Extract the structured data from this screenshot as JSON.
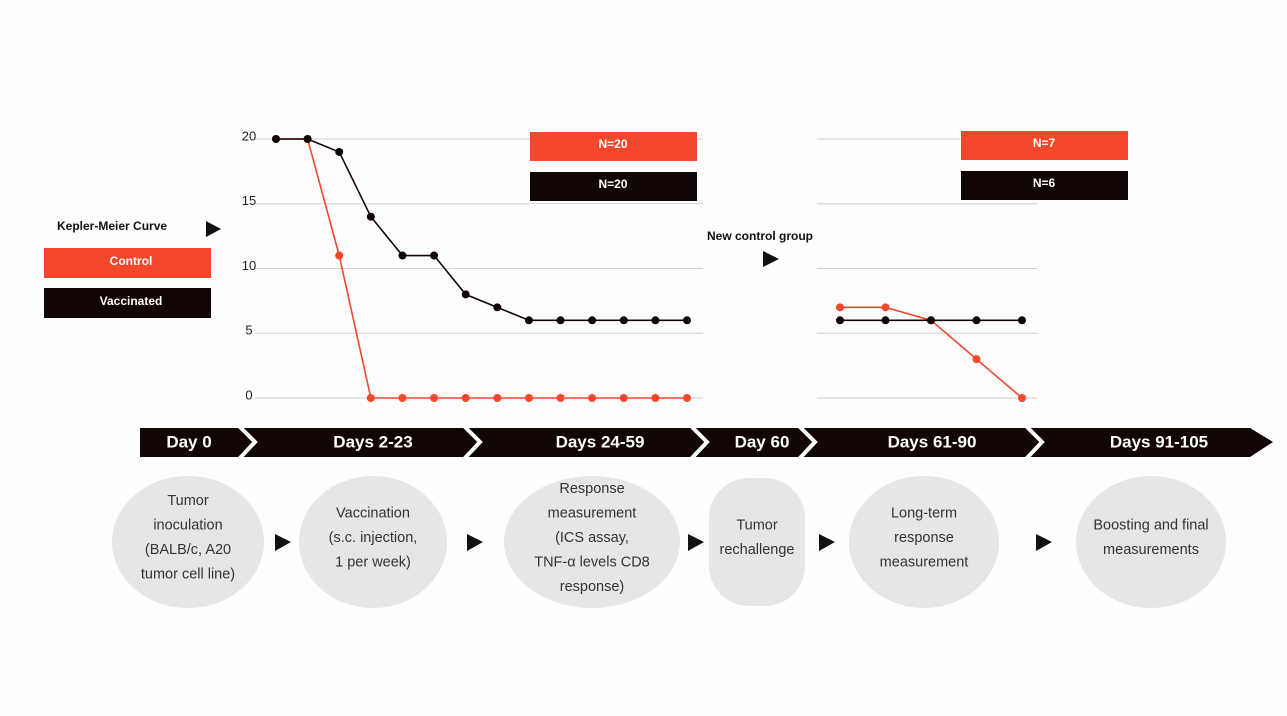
{
  "legend": {
    "title": "Kepler-Meier Curve"
  },
  "chart_data": [
    {
      "type": "line",
      "categories": [
        null,
        null,
        null,
        null,
        null,
        null,
        null,
        null,
        null,
        null,
        null,
        null,
        null,
        null
      ],
      "series": [
        {
          "name": "Control",
          "color": "#f4472b",
          "n_label": "N=20",
          "values": [
            20,
            20,
            11,
            0,
            0,
            0,
            0,
            0,
            0,
            0,
            0,
            0,
            0,
            0
          ]
        },
        {
          "name": "Vaccinated",
          "color": "#120605",
          "n_label": "N=20",
          "values": [
            20,
            20,
            19,
            14,
            11,
            11,
            8,
            7,
            6,
            6,
            6,
            6,
            6,
            6
          ]
        }
      ],
      "ylim": [
        0,
        20
      ],
      "yticks": [
        0,
        5,
        10,
        15,
        20
      ],
      "grid": true
    },
    {
      "type": "line",
      "categories": [
        null,
        null,
        null,
        null,
        null
      ],
      "series": [
        {
          "color": "#f4472b",
          "n_label": "N=7",
          "values": [
            7,
            7,
            6,
            3,
            0
          ]
        },
        {
          "color": "#120605",
          "n_label": "N=6",
          "values": [
            6,
            6,
            6,
            6,
            6
          ]
        }
      ],
      "ylim": [
        0,
        20
      ],
      "yticks": [
        0,
        5,
        10,
        15,
        20
      ],
      "grid": true
    }
  ],
  "annotation": "New control group",
  "timeline": [
    "Day 0",
    "Days 2-23",
    "Days 24-59",
    "Day 60",
    "Days 61-90",
    "Days 91-105"
  ],
  "steps": [
    [
      "Tumor",
      "inoculation",
      "(BALB/c, A20",
      "tumor cell line)"
    ],
    [
      "Vaccination",
      "(s.c. injection,",
      "1 per week)"
    ],
    [
      "Response",
      "measurement",
      "(ICS assay,",
      "TNF-α levels CD8",
      "response)"
    ],
    [
      "Tumor",
      "rechallenge"
    ],
    [
      "Long-term",
      "response",
      "measurement"
    ],
    [
      "Boosting and final",
      "measurements"
    ]
  ]
}
